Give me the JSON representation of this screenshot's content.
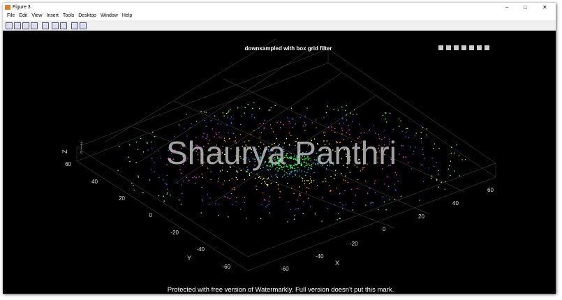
{
  "window": {
    "title": "Figure 3",
    "menu": [
      "File",
      "Edit",
      "View",
      "Insert",
      "Tools",
      "Desktop",
      "Window",
      "Help"
    ]
  },
  "plot": {
    "title": "downsampled with box grid filter",
    "x_label": "X",
    "y_label": "Y",
    "z_label": "Z",
    "x_ticks": [
      -60,
      -40,
      -20,
      0,
      20,
      40,
      60
    ],
    "y_ticks": [
      60,
      40,
      20,
      0,
      -20,
      -40,
      -60
    ],
    "z_ticks": [
      2,
      1,
      0
    ]
  },
  "watermark": {
    "name": "Shaurya Panthri",
    "notice": "Protected with free version of Watermarkly. Full version doesn't put this mark."
  }
}
